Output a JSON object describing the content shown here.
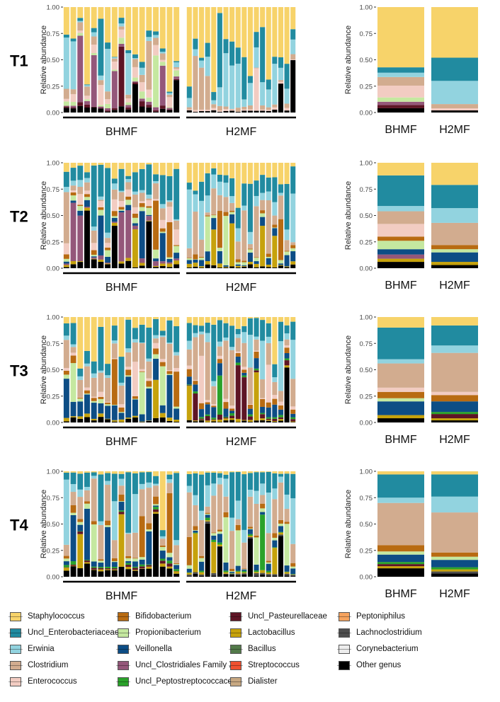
{
  "chart_data": {
    "type": "bar",
    "stacked": true,
    "ylabel": "Relative abundance",
    "ylim": [
      0,
      1
    ],
    "yticks": [
      "0.00",
      "0.25",
      "0.50",
      "0.75",
      "1.00"
    ],
    "groups": [
      "BHMF",
      "H2MF"
    ],
    "rows": [
      {
        "label": "T1",
        "samples_per_group": [
          17,
          18
        ],
        "seed": 11,
        "mean": {
          "BHMF": {
            "Staphylococcus": 0.56,
            "Uncl_Enterobacteriaceae": 0.05,
            "Erwinia": 0.04,
            "Clostridium": 0.08,
            "Enterococcus": 0.11,
            "Propionibacterium": 0.04,
            "Uncl_Clostridiales Family XI": 0.03,
            "Uncl_Pasteurellaceae": 0.03,
            "Other genus": 0.04
          },
          "H2MF": {
            "Staphylococcus": 0.48,
            "Erwinia": 0.22,
            "Uncl_Enterobacteriaceae": 0.22,
            "Clostridium": 0.04,
            "Enterococcus": 0.02,
            "Other genus": 0.02
          }
        }
      },
      {
        "label": "T2",
        "samples_per_group": [
          17,
          18
        ],
        "seed": 23,
        "mean": {
          "BHMF": {
            "Uncl_Enterobacteriaceae": 0.29,
            "Staphylococcus": 0.12,
            "Clostridium": 0.12,
            "Erwinia": 0.05,
            "Veillonella": 0.05,
            "Enterococcus": 0.12,
            "Propionibacterium": 0.08,
            "Bifidobacterium": 0.04,
            "Uncl_Clostridiales Family XI": 0.04,
            "Lactobacillus": 0.03,
            "Other genus": 0.06
          },
          "H2MF": {
            "Uncl_Enterobacteriaceae": 0.22,
            "Staphylococcus": 0.21,
            "Clostridium": 0.21,
            "Erwinia": 0.14,
            "Veillonella": 0.09,
            "Propionibacterium": 0.03,
            "Bifidobacterium": 0.04,
            "Lactobacillus": 0.03,
            "Other genus": 0.03
          }
        }
      },
      {
        "label": "T3",
        "samples_per_group": [
          17,
          18
        ],
        "seed": 37,
        "mean": {
          "BHMF": {
            "Clostridium": 0.23,
            "Uncl_Enterobacteriaceae": 0.3,
            "Veillonella": 0.13,
            "Staphylococcus": 0.1,
            "Bifidobacterium": 0.06,
            "Erwinia": 0.04,
            "Enterococcus": 0.04,
            "Propionibacterium": 0.03,
            "Lactobacillus": 0.03,
            "Other genus": 0.04
          },
          "H2MF": {
            "Clostridium": 0.37,
            "Uncl_Enterobacteriaceae": 0.19,
            "Veillonella": 0.1,
            "Staphylococcus": 0.08,
            "Bifidobacterium": 0.06,
            "Erwinia": 0.07,
            "Enterococcus": 0.03,
            "Uncl_Pasteurellaceae": 0.04,
            "Uncl_Peptostreptococcaceae": 0.02,
            "Lactobacillus": 0.02,
            "Other genus": 0.02
          }
        }
      },
      {
        "label": "T4",
        "samples_per_group": [
          17,
          18
        ],
        "seed": 53,
        "mean": {
          "BHMF": {
            "Clostridium": 0.4,
            "Uncl_Enterobacteriaceae": 0.22,
            "Erwinia": 0.05,
            "Veillonella": 0.07,
            "Bifidobacterium": 0.06,
            "Staphylococcus": 0.03,
            "Propionibacterium": 0.03,
            "Uncl_Peptostreptococcaceae": 0.02,
            "Lactobacillus": 0.02,
            "Uncl_Pasteurellaceae": 0.02,
            "Other genus": 0.08
          },
          "H2MF": {
            "Clostridium": 0.38,
            "Uncl_Enterobacteriaceae": 0.21,
            "Erwinia": 0.15,
            "Veillonella": 0.07,
            "Bifidobacterium": 0.04,
            "Staphylococcus": 0.03,
            "Propionibacterium": 0.03,
            "Uncl_Peptostreptococcaceae": 0.02,
            "Lactobacillus": 0.02,
            "Lachnoclostridium": 0.02,
            "Other genus": 0.03
          }
        }
      }
    ],
    "stack_order": [
      "Other genus",
      "Corynebacterium",
      "Lachnoclostridium",
      "Peptoniphilus",
      "Dialister",
      "Streptococcus",
      "Bacillus",
      "Lactobacillus",
      "Uncl_Pasteurellaceae",
      "Uncl_Peptostreptococcaceae",
      "Uncl_Clostridiales Family XI",
      "Veillonella",
      "Propionibacterium",
      "Bifidobacterium",
      "Enterococcus",
      "Clostridium",
      "Erwinia",
      "Uncl_Enterobacteriaceae",
      "Staphylococcus"
    ],
    "legend": [
      {
        "name": "Staphylococcus",
        "color": "#F7D36A"
      },
      {
        "name": "Uncl_Enterobacteriaceae",
        "color": "#218BA0"
      },
      {
        "name": "Erwinia",
        "color": "#92D3DF"
      },
      {
        "name": "Clostridium",
        "color": "#D2AC8F"
      },
      {
        "name": "Enterococcus",
        "color": "#F2CCC2"
      },
      {
        "name": "Bifidobacterium",
        "color": "#B86B12"
      },
      {
        "name": "Propionibacterium",
        "color": "#C5E8A0"
      },
      {
        "name": "Veillonella",
        "color": "#0D4D85"
      },
      {
        "name": "Uncl_Clostridiales Family XI",
        "color": "#94577A"
      },
      {
        "name": "Uncl_Peptostreptococcaceae",
        "color": "#2AA22A"
      },
      {
        "name": "Uncl_Pasteurellaceae",
        "color": "#5E1525"
      },
      {
        "name": "Lactobacillus",
        "color": "#C6A20C"
      },
      {
        "name": "Bacillus",
        "color": "#537A4A"
      },
      {
        "name": "Streptococcus",
        "color": "#EE5130"
      },
      {
        "name": "Dialister",
        "color": "#C7A882"
      },
      {
        "name": "Peptoniphilus",
        "color": "#F6A35E"
      },
      {
        "name": "Lachnoclostridium",
        "color": "#4E4E4E"
      },
      {
        "name": "Corynebacterium",
        "color": "#EDEDED"
      },
      {
        "name": "Other genus",
        "color": "#000000"
      }
    ]
  }
}
